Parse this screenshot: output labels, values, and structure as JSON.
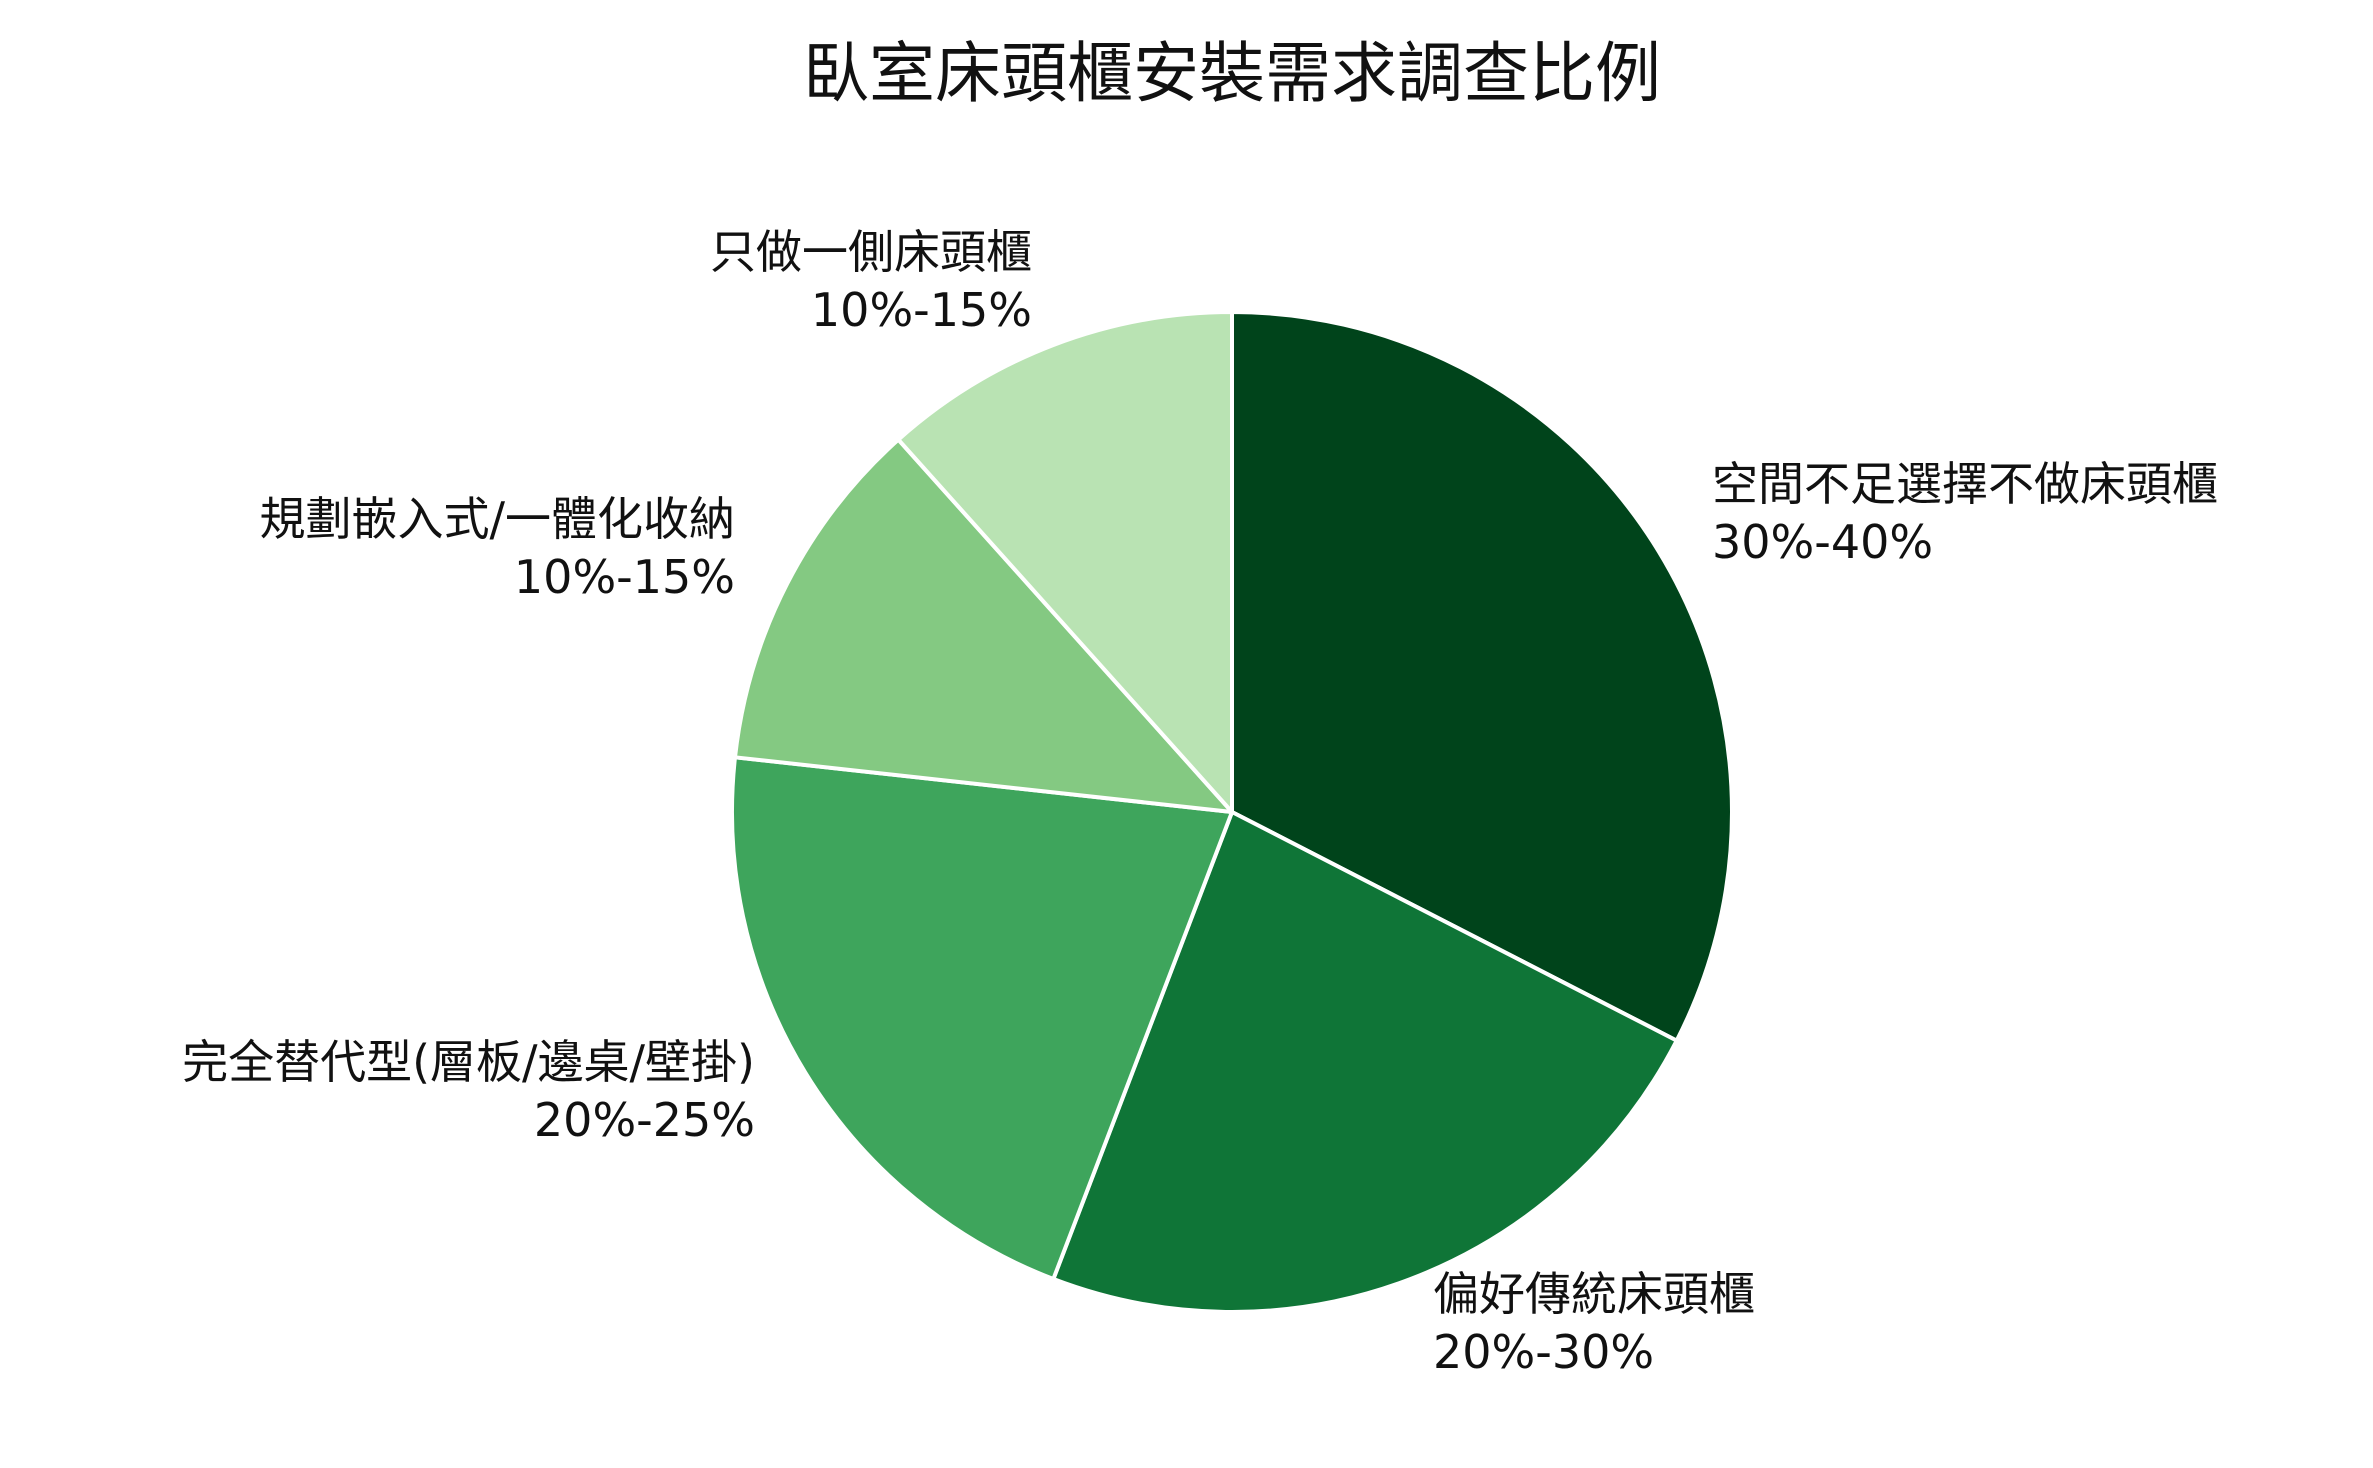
{
  "chart_data": {
    "type": "pie",
    "title": "臥室床頭櫃安裝需求調查比例",
    "slices": [
      {
        "label": "空間不足選擇不做床頭櫃",
        "range": "30%-40%",
        "value": 35,
        "color": "#00441b"
      },
      {
        "label": "偏好傳統床頭櫃",
        "range": "20%-30%",
        "value": 25,
        "color": "#0f7537"
      },
      {
        "label": "完全替代型(層板/邊桌/壁掛)",
        "range": "20%-25%",
        "value": 22.5,
        "color": "#3ea55c"
      },
      {
        "label": "規劃嵌入式/一體化收納",
        "range": "10%-15%",
        "value": 12.5,
        "color": "#84c982"
      },
      {
        "label": "只做一側床頭櫃",
        "range": "10%-15%",
        "value": 12.5,
        "color": "#b9e3b3"
      }
    ],
    "start_angle": "12 o'clock",
    "direction": "clockwise",
    "edge_color": "#ffffff",
    "legend": "none"
  }
}
